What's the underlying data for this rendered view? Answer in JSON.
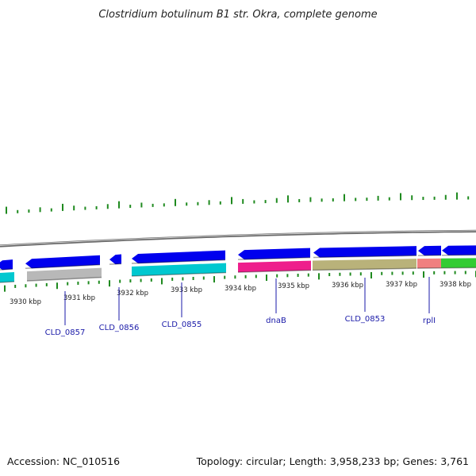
{
  "title": "Clostridium botulinum B1 str. Okra, complete genome",
  "scale_labels": [
    "3930 kbp",
    "3931 kbp",
    "3932 kbp",
    "3933 kbp",
    "3934 kbp",
    "3935 kbp",
    "3936 kbp",
    "3937 kbp",
    "3938 kbp"
  ],
  "gene_labels": [
    "CLD_0857",
    "CLD_0856",
    "CLD_0855",
    "dnaB",
    "CLD_0853",
    "rplI"
  ],
  "colors": {
    "forward_strand": "#0000ee",
    "backbone": "#8c8c8c",
    "gc_skew": "#1f8a1f",
    "label": "#1a1aa8",
    "cyan": "#00c8d0",
    "grey_feature": "#b8b8b8",
    "magenta": "#ee1e8c",
    "khaki": "#b9b27a",
    "salmon": "#f08080",
    "green": "#33cc33"
  },
  "footer": {
    "accession": "Accession: NC_010516",
    "topology": "Topology: circular; Length: 3,958,233 bp; Genes: 3,761"
  }
}
